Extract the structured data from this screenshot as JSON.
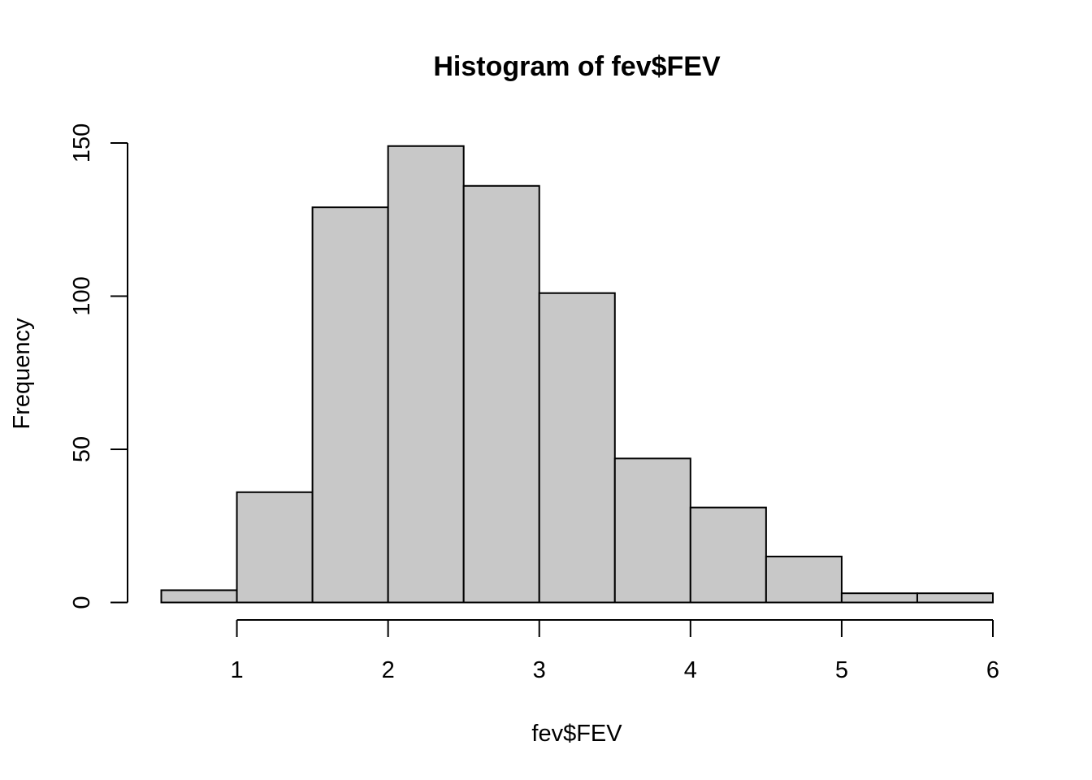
{
  "chart_data": {
    "type": "bar",
    "title": "Histogram of fev$FEV",
    "xlabel": "fev$FEV",
    "ylabel": "Frequency",
    "bin_edges": [
      0.5,
      1.0,
      1.5,
      2.0,
      2.5,
      3.0,
      3.5,
      4.0,
      4.5,
      5.0,
      5.5,
      6.0
    ],
    "values": [
      4,
      36,
      129,
      149,
      136,
      101,
      47,
      31,
      15,
      3,
      3
    ],
    "x_ticks": [
      1,
      2,
      3,
      4,
      5,
      6
    ],
    "y_ticks": [
      0,
      50,
      100,
      150
    ],
    "xlim": [
      0.5,
      6.0
    ],
    "ylim": [
      0,
      150
    ],
    "bar_color": "#c8c8c8",
    "grid": false
  }
}
